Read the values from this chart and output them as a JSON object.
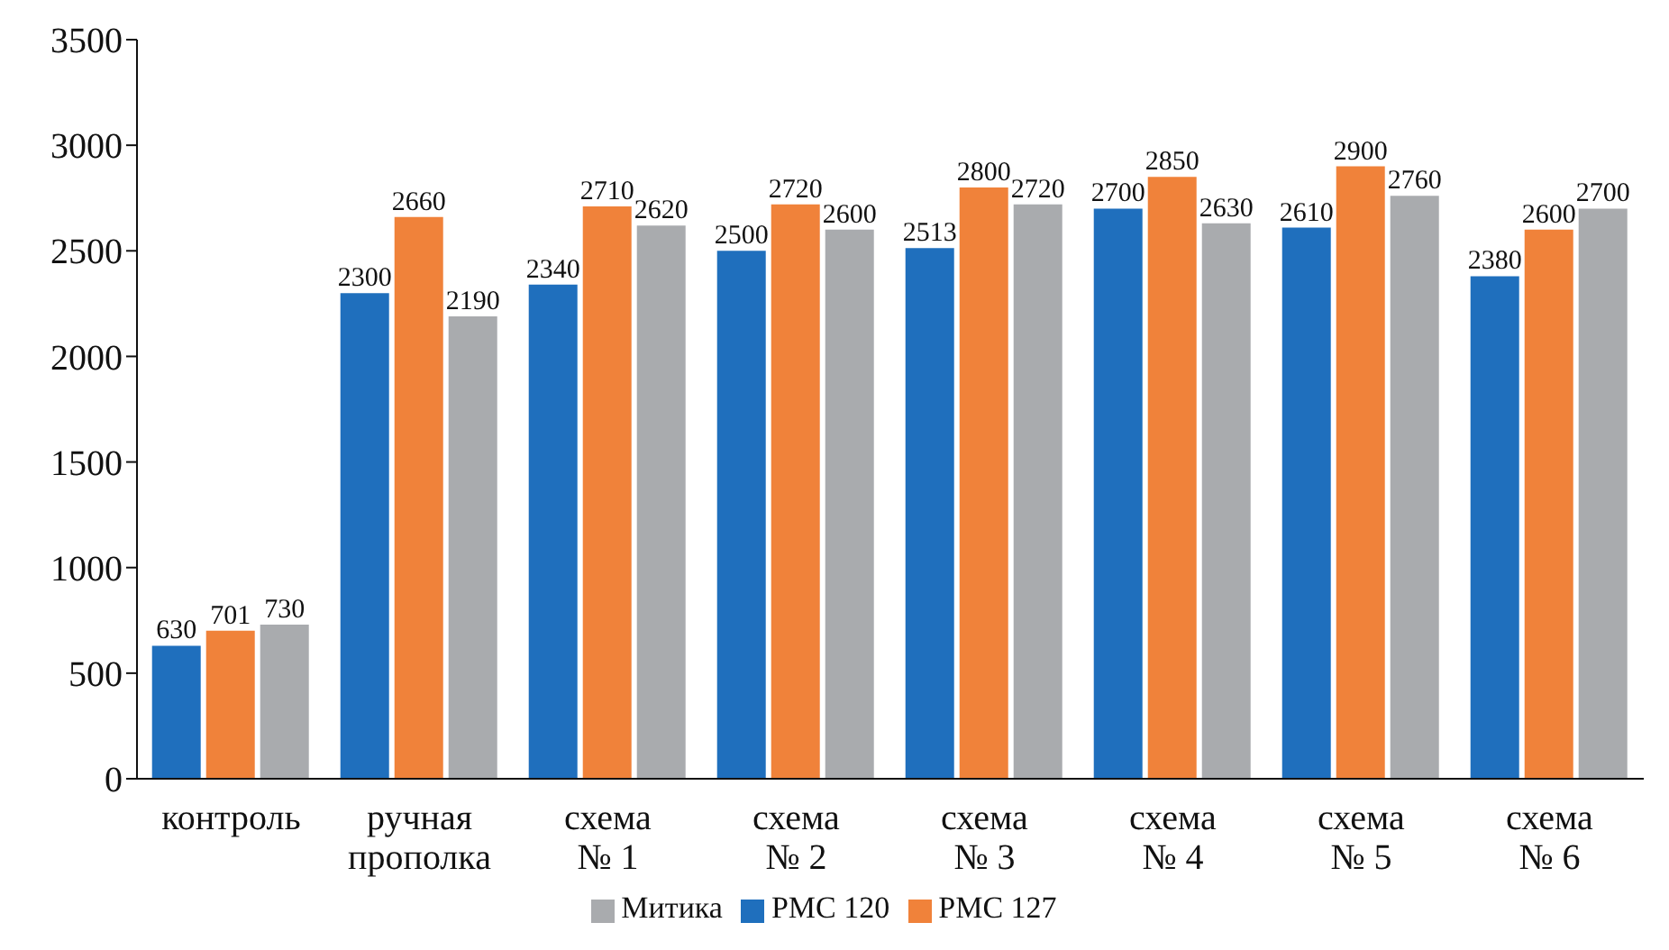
{
  "chart_data": {
    "type": "bar",
    "categories": [
      "контроль",
      "ручная прополка",
      "схема № 1",
      "схема № 2",
      "схема № 3",
      "схема № 4",
      "схема № 5",
      "схема № 6"
    ],
    "series": [
      {
        "name": "РМС 120",
        "color": "#1f6fbd",
        "values": [
          630,
          2300,
          2340,
          2500,
          2513,
          2700,
          2610,
          2380
        ]
      },
      {
        "name": "РМС 127",
        "color": "#f0823a",
        "values": [
          701,
          2660,
          2710,
          2720,
          2800,
          2850,
          2900,
          2600
        ]
      },
      {
        "name": "Митика",
        "color": "#a9abae",
        "values": [
          730,
          2190,
          2620,
          2600,
          2720,
          2630,
          2760,
          2700
        ]
      }
    ],
    "ylim": [
      0,
      3500
    ],
    "yticks": [
      0,
      500,
      1000,
      1500,
      2000,
      2500,
      3000,
      3500
    ],
    "grid": false,
    "legend": "bottom",
    "data_labels": true
  }
}
